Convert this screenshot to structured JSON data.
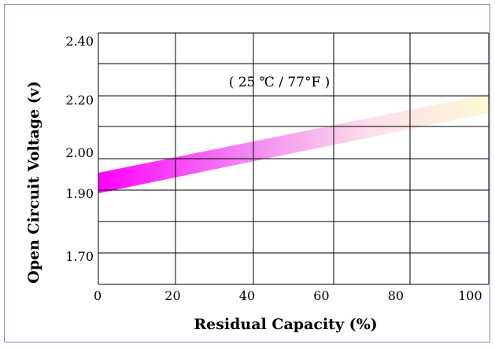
{
  "header_partial_text": "",
  "chart_data": {
    "type": "line",
    "title": "",
    "annotation": "( 25 ℃ / 77°F )",
    "xlabel": "Residual  Capacity (%)",
    "ylabel": "Open Circuit Voltage (v)",
    "xlim": [
      0,
      105
    ],
    "x_ticks": [
      0,
      20,
      40,
      60,
      80,
      100
    ],
    "x_tick_labels": [
      "0",
      "20",
      "40",
      "60",
      "80",
      "100"
    ],
    "ylim": [
      1.64,
      2.42
    ],
    "y_ticks": [
      2.4,
      2.2,
      2.0,
      1.9,
      1.7
    ],
    "y_tick_labels": [
      "2.40",
      "2.20",
      "2.00",
      "1.90",
      "1.70"
    ],
    "grid": true,
    "series": [
      {
        "x": [
          0,
          105
        ],
        "y_lower": [
          1.9,
          2.15
        ],
        "y_upper": [
          1.95,
          2.22
        ]
      }
    ],
    "colors": {
      "band_start": "#ff00ff",
      "band_end": "#fff7d6",
      "grid": "#000000",
      "frame": "#7f8fb8"
    }
  }
}
